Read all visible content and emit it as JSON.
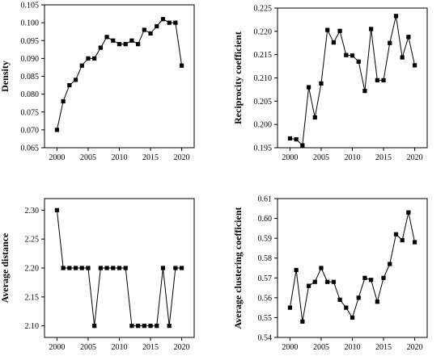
{
  "chart_data": [
    {
      "type": "line",
      "ylabel": "Density",
      "xlabel": "",
      "xlim": [
        1998,
        2022
      ],
      "ylim": [
        0.065,
        0.105
      ],
      "x_ticks": [
        2000,
        2005,
        2010,
        2015,
        2020
      ],
      "y_ticks": [
        0.065,
        0.07,
        0.075,
        0.08,
        0.085,
        0.09,
        0.095,
        0.1,
        0.105
      ],
      "y_tick_labels": [
        "0.065",
        "0.070",
        "0.075",
        "0.080",
        "0.085",
        "0.090",
        "0.095",
        "0.100",
        "0.105"
      ],
      "marker": "square",
      "grid": false,
      "series": [
        {
          "x": [
            2000,
            2001,
            2002,
            2003,
            2004,
            2005,
            2006,
            2007,
            2008,
            2009,
            2010,
            2011,
            2012,
            2013,
            2014,
            2015,
            2016,
            2017,
            2018,
            2019,
            2020
          ],
          "y": [
            0.07,
            0.078,
            0.0825,
            0.084,
            0.088,
            0.09,
            0.09,
            0.093,
            0.096,
            0.095,
            0.094,
            0.094,
            0.095,
            0.094,
            0.098,
            0.097,
            0.099,
            0.101,
            0.1,
            0.1,
            0.088
          ]
        }
      ]
    },
    {
      "type": "line",
      "ylabel": "Reciprocity coefficient",
      "xlabel": "",
      "xlim": [
        1998,
        2022
      ],
      "ylim": [
        0.195,
        0.225
      ],
      "x_ticks": [
        2000,
        2005,
        2010,
        2015,
        2020
      ],
      "y_ticks": [
        0.195,
        0.2,
        0.205,
        0.21,
        0.215,
        0.22,
        0.225
      ],
      "y_tick_labels": [
        "0.195",
        "0.200",
        "0.205",
        "0.210",
        "0.215",
        "0.220",
        "0.225"
      ],
      "marker": "square",
      "grid": false,
      "series": [
        {
          "x": [
            2000,
            2001,
            2002,
            2003,
            2004,
            2005,
            2006,
            2007,
            2008,
            2009,
            2010,
            2011,
            2012,
            2013,
            2014,
            2015,
            2016,
            2017,
            2018,
            2019,
            2020
          ],
          "y": [
            0.197,
            0.1968,
            0.1955,
            0.208,
            0.2015,
            0.2088,
            0.2203,
            0.2176,
            0.2201,
            0.2149,
            0.2148,
            0.2135,
            0.2072,
            0.2205,
            0.2095,
            0.2095,
            0.2175,
            0.2233,
            0.2144,
            0.2188,
            0.2127
          ]
        }
      ]
    },
    {
      "type": "line",
      "ylabel": "Average distance",
      "xlabel": "",
      "xlim": [
        1998,
        2022
      ],
      "ylim": [
        2.08,
        2.32
      ],
      "x_ticks": [
        2000,
        2005,
        2010,
        2015,
        2020
      ],
      "y_ticks": [
        2.1,
        2.15,
        2.2,
        2.25,
        2.3
      ],
      "y_tick_labels": [
        "2.10",
        "2.15",
        "2.20",
        "2.25",
        "2.30"
      ],
      "marker": "square",
      "grid": false,
      "series": [
        {
          "x": [
            2000,
            2001,
            2002,
            2003,
            2004,
            2005,
            2006,
            2007,
            2008,
            2009,
            2010,
            2011,
            2012,
            2013,
            2014,
            2015,
            2016,
            2017,
            2018,
            2019,
            2020
          ],
          "y": [
            2.3,
            2.2,
            2.2,
            2.2,
            2.2,
            2.2,
            2.1,
            2.2,
            2.2,
            2.2,
            2.2,
            2.2,
            2.1,
            2.1,
            2.1,
            2.1,
            2.1,
            2.2,
            2.1,
            2.2,
            2.2
          ]
        }
      ]
    },
    {
      "type": "line",
      "ylabel": "Average clustering coefficient",
      "xlabel": "",
      "xlim": [
        1998,
        2022
      ],
      "ylim": [
        0.54,
        0.61
      ],
      "x_ticks": [
        2000,
        2005,
        2010,
        2015,
        2020
      ],
      "y_ticks": [
        0.54,
        0.55,
        0.56,
        0.57,
        0.58,
        0.59,
        0.6,
        0.61
      ],
      "y_tick_labels": [
        "0.54",
        "0.55",
        "0.56",
        "0.57",
        "0.58",
        "0.59",
        "0.60",
        "0.61"
      ],
      "marker": "square",
      "grid": false,
      "series": [
        {
          "x": [
            2000,
            2001,
            2002,
            2003,
            2004,
            2005,
            2006,
            2007,
            2008,
            2009,
            2010,
            2011,
            2012,
            2013,
            2014,
            2015,
            2016,
            2017,
            2018,
            2019,
            2020
          ],
          "y": [
            0.555,
            0.574,
            0.548,
            0.566,
            0.568,
            0.575,
            0.568,
            0.568,
            0.559,
            0.555,
            0.55,
            0.56,
            0.57,
            0.569,
            0.558,
            0.57,
            0.577,
            0.592,
            0.589,
            0.603,
            0.588
          ]
        }
      ]
    }
  ]
}
